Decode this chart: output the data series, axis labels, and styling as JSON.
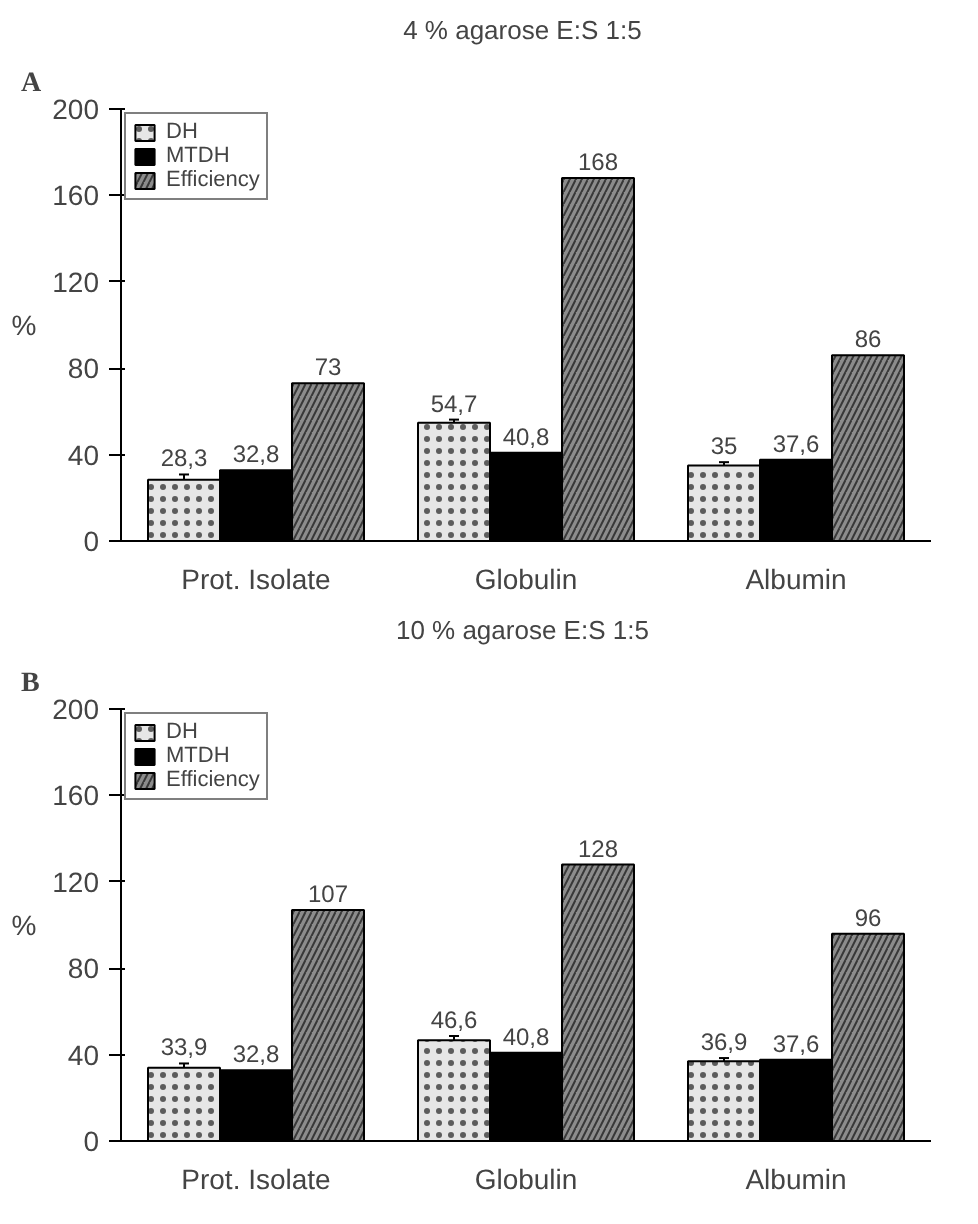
{
  "chart_data": [
    {
      "type": "bar",
      "title": "4 % agarose E:S  1:5",
      "ylabel": "%",
      "annotations": [
        "A"
      ],
      "categories": [
        "Prot. Isolate",
        "Globulin",
        "Albumin"
      ],
      "ylim": [
        0,
        200
      ],
      "yticks": [
        0,
        40,
        80,
        120,
        160,
        200
      ],
      "grid": false,
      "legend": "top left",
      "series": [
        {
          "name": "DH",
          "color": "#e6e6e6",
          "values": [
            28.3,
            54.7,
            35
          ],
          "errors": [
            2.5,
            1.5,
            1.5
          ],
          "value_labels": [
            "28,3",
            "54,7",
            "35"
          ]
        },
        {
          "name": "MTDH",
          "color": "#000000",
          "values": [
            32.8,
            40.8,
            37.6
          ],
          "value_labels": [
            "32,8",
            "40,8",
            "37,6"
          ]
        },
        {
          "name": "Efficiency",
          "color": "#8c8c8c",
          "values": [
            73,
            168,
            86
          ],
          "value_labels": [
            "73",
            "168",
            "86"
          ]
        }
      ]
    },
    {
      "type": "bar",
      "title": "10 % agarose E:S  1:5",
      "ylabel": "%",
      "annotations": [
        "B"
      ],
      "categories": [
        "Prot. Isolate",
        "Globulin",
        "Albumin"
      ],
      "ylim": [
        0,
        200
      ],
      "yticks": [
        0,
        40,
        80,
        120,
        160,
        200
      ],
      "grid": false,
      "legend": "top left",
      "series": [
        {
          "name": "DH",
          "color": "#e6e6e6",
          "values": [
            33.9,
            46.6,
            36.9
          ],
          "errors": [
            2,
            2,
            1.5
          ],
          "value_labels": [
            "33,9",
            "46,6",
            "36,9"
          ]
        },
        {
          "name": "MTDH",
          "color": "#000000",
          "values": [
            32.8,
            40.8,
            37.6
          ],
          "value_labels": [
            "32,8",
            "40,8",
            "37,6"
          ]
        },
        {
          "name": "Efficiency",
          "color": "#8c8c8c",
          "values": [
            107,
            128,
            96
          ],
          "value_labels": [
            "107",
            "128",
            "96"
          ]
        }
      ]
    }
  ]
}
